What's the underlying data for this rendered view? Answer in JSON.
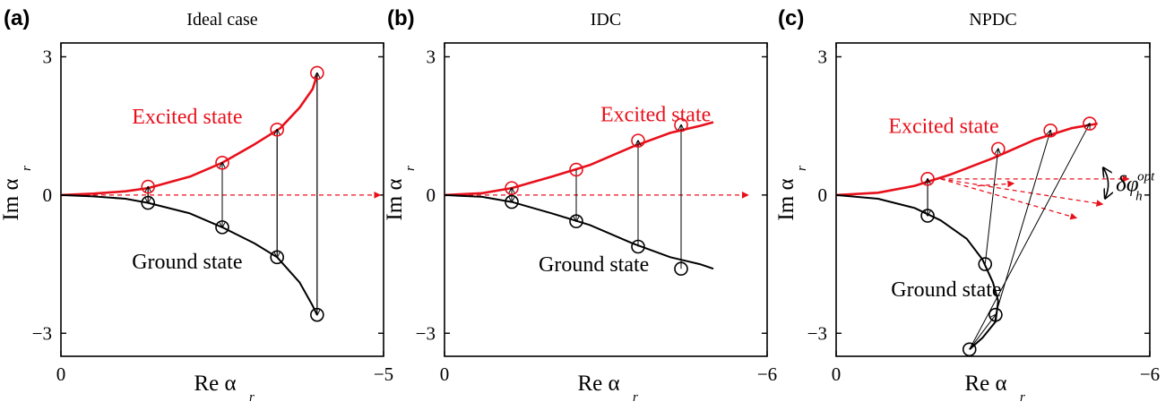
{
  "colors": {
    "excited": "#e8101b",
    "ground": "#000000"
  },
  "chart_data": [
    {
      "type": "line",
      "panel_label": "(a)",
      "title": "Ideal case",
      "xlabel_main": "Re α",
      "xlabel_sub": "r",
      "ylabel_main": "Im α",
      "ylabel_sub": "r",
      "xlim": [
        0,
        -5
      ],
      "ylim": [
        -3.5,
        3.3
      ],
      "x_ticks": [
        {
          "v": 0,
          "label": "0"
        },
        {
          "v": -5,
          "label": "−5"
        }
      ],
      "y_ticks": [
        {
          "v": 3,
          "label": "3"
        },
        {
          "v": 0,
          "label": "0"
        },
        {
          "v": -3,
          "label": "−3"
        }
      ],
      "series": [
        {
          "name": "Excited state",
          "curve": [
            [
              0,
              0
            ],
            [
              -0.5,
              0.03
            ],
            [
              -1,
              0.08
            ],
            [
              -1.35,
              0.15
            ],
            [
              -2,
              0.4
            ],
            [
              -2.5,
              0.7
            ],
            [
              -3,
              1.1
            ],
            [
              -3.4,
              1.45
            ],
            [
              -3.7,
              1.9
            ],
            [
              -3.9,
              2.3
            ],
            [
              -3.97,
              2.6
            ]
          ],
          "markers": [
            [
              -1.35,
              0.18
            ],
            [
              -2.5,
              0.7
            ],
            [
              -3.35,
              1.42
            ],
            [
              -3.97,
              2.65
            ]
          ]
        },
        {
          "name": "Ground state",
          "curve": [
            [
              0,
              0
            ],
            [
              -0.5,
              -0.03
            ],
            [
              -1,
              -0.08
            ],
            [
              -1.35,
              -0.17
            ],
            [
              -2,
              -0.4
            ],
            [
              -2.5,
              -0.7
            ],
            [
              -3,
              -1.05
            ],
            [
              -3.35,
              -1.35
            ],
            [
              -3.7,
              -1.9
            ],
            [
              -3.9,
              -2.4
            ],
            [
              -3.97,
              -2.6
            ]
          ],
          "markers": [
            [
              -1.35,
              -0.17
            ],
            [
              -2.5,
              -0.7
            ],
            [
              -3.35,
              -1.35
            ],
            [
              -3.97,
              -2.6
            ]
          ]
        }
      ],
      "arrows": [
        {
          "from": [
            -1.35,
            -0.17
          ],
          "to": [
            -1.35,
            0.18
          ],
          "style": "solid"
        },
        {
          "from": [
            -1.35,
            0.18
          ],
          "to": [
            -1.35,
            -0.17
          ],
          "style": "solid"
        },
        {
          "from": [
            -2.5,
            0.7
          ],
          "to": [
            -2.5,
            -0.7
          ],
          "style": "solid"
        },
        {
          "from": [
            -2.5,
            -0.7
          ],
          "to": [
            -2.5,
            0.7
          ],
          "style": "solid"
        },
        {
          "from": [
            -3.35,
            1.42
          ],
          "to": [
            -3.35,
            -1.35
          ],
          "style": "solid"
        },
        {
          "from": [
            -3.35,
            -1.35
          ],
          "to": [
            -3.35,
            1.42
          ],
          "style": "solid"
        },
        {
          "from": [
            -3.97,
            2.65
          ],
          "to": [
            -3.97,
            -2.6
          ],
          "style": "solid"
        },
        {
          "from": [
            -3.97,
            -2.6
          ],
          "to": [
            -3.97,
            2.65
          ],
          "style": "solid"
        },
        {
          "from": [
            0,
            0
          ],
          "to": [
            -4.95,
            0
          ],
          "style": "dashed"
        }
      ],
      "labels": [
        {
          "text": "Excited state",
          "at": [
            -1.1,
            1.55
          ],
          "color": "excited"
        },
        {
          "text": "Ground state",
          "at": [
            -1.1,
            -1.6
          ],
          "color": "ground"
        }
      ],
      "annotation": ""
    },
    {
      "type": "line",
      "panel_label": "(b)",
      "title": "IDC",
      "xlabel_main": "Re α",
      "xlabel_sub": "r",
      "ylabel_main": "Im α",
      "ylabel_sub": "r",
      "xlim": [
        0,
        -6
      ],
      "ylim": [
        -3.5,
        3.3
      ],
      "x_ticks": [
        {
          "v": 0,
          "label": "0"
        },
        {
          "v": -6,
          "label": "−6"
        }
      ],
      "y_ticks": [
        {
          "v": 3,
          "label": "3"
        },
        {
          "v": 0,
          "label": "0"
        },
        {
          "v": -3,
          "label": "−3"
        }
      ],
      "series": [
        {
          "name": "Excited state",
          "curve": [
            [
              0,
              0
            ],
            [
              -0.7,
              0.04
            ],
            [
              -1.25,
              0.15
            ],
            [
              -2,
              0.4
            ],
            [
              -2.7,
              0.65
            ],
            [
              -3.5,
              1.05
            ],
            [
              -4.2,
              1.35
            ],
            [
              -4.75,
              1.5
            ],
            [
              -5,
              1.58
            ]
          ],
          "markers": [
            [
              -1.25,
              0.15
            ],
            [
              -2.45,
              0.55
            ],
            [
              -3.6,
              1.18
            ],
            [
              -4.4,
              1.52
            ]
          ]
        },
        {
          "name": "Ground state",
          "curve": [
            [
              0,
              0
            ],
            [
              -0.7,
              -0.04
            ],
            [
              -1.25,
              -0.15
            ],
            [
              -2,
              -0.4
            ],
            [
              -2.7,
              -0.65
            ],
            [
              -3.5,
              -1.05
            ],
            [
              -4.2,
              -1.35
            ],
            [
              -4.75,
              -1.5
            ],
            [
              -5,
              -1.6
            ]
          ],
          "markers": [
            [
              -1.25,
              -0.15
            ],
            [
              -2.45,
              -0.57
            ],
            [
              -3.6,
              -1.12
            ],
            [
              -4.4,
              -1.6
            ]
          ]
        }
      ],
      "arrows": [
        {
          "from": [
            -1.25,
            -0.15
          ],
          "to": [
            -1.25,
            0.15
          ],
          "style": "solid"
        },
        {
          "from": [
            -1.25,
            0.15
          ],
          "to": [
            -1.25,
            -0.15
          ],
          "style": "solid"
        },
        {
          "from": [
            -2.45,
            0.55
          ],
          "to": [
            -2.45,
            -0.57
          ],
          "style": "solid"
        },
        {
          "from": [
            -3.6,
            -1.12
          ],
          "to": [
            -3.6,
            1.18
          ],
          "style": "solid"
        },
        {
          "from": [
            -4.4,
            -1.6
          ],
          "to": [
            -4.4,
            1.52
          ],
          "style": "solid"
        },
        {
          "from": [
            0,
            0
          ],
          "to": [
            -5.65,
            0
          ],
          "style": "dashed"
        }
      ],
      "labels": [
        {
          "text": "Excited state",
          "at": [
            -2.9,
            1.6
          ],
          "color": "excited"
        },
        {
          "text": "Ground state",
          "at": [
            -1.75,
            -1.65
          ],
          "color": "ground"
        }
      ],
      "annotation": ""
    },
    {
      "type": "line",
      "panel_label": "(c)",
      "title": "NPDC",
      "xlabel_main": "Re α",
      "xlabel_sub": "r",
      "ylabel_main": "Im α",
      "ylabel_sub": "r",
      "xlim": [
        0,
        -6
      ],
      "ylim": [
        -3.5,
        3.3
      ],
      "x_ticks": [
        {
          "v": 0,
          "label": "0"
        },
        {
          "v": -6,
          "label": "−6"
        }
      ],
      "y_ticks": [
        {
          "v": 3,
          "label": "3"
        },
        {
          "v": 0,
          "label": "0"
        },
        {
          "v": -3,
          "label": "−3"
        }
      ],
      "series": [
        {
          "name": "Excited state",
          "curve": [
            [
              0,
              0
            ],
            [
              -0.8,
              0.05
            ],
            [
              -1.5,
              0.2
            ],
            [
              -2.2,
              0.45
            ],
            [
              -3,
              0.8
            ],
            [
              -3.8,
              1.2
            ],
            [
              -4.5,
              1.45
            ],
            [
              -5,
              1.55
            ]
          ],
          "markers": [
            [
              -1.75,
              0.35
            ],
            [
              -3.1,
              1.0
            ],
            [
              -4.1,
              1.4
            ],
            [
              -4.85,
              1.55
            ]
          ]
        },
        {
          "name": "Ground state",
          "curve": [
            [
              0,
              0
            ],
            [
              -0.8,
              -0.08
            ],
            [
              -1.5,
              -0.28
            ],
            [
              -2,
              -0.55
            ],
            [
              -2.5,
              -0.95
            ],
            [
              -2.8,
              -1.4
            ],
            [
              -3.0,
              -1.9
            ],
            [
              -3.1,
              -2.3
            ],
            [
              -3.05,
              -2.75
            ],
            [
              -2.8,
              -3.1
            ],
            [
              -2.55,
              -3.35
            ]
          ],
          "markers": [
            [
              -1.75,
              -0.45
            ],
            [
              -2.85,
              -1.5
            ],
            [
              -3.05,
              -2.6
            ],
            [
              -2.55,
              -3.35
            ]
          ]
        }
      ],
      "arrows": [
        {
          "from": [
            -1.75,
            0.35
          ],
          "to": [
            -1.75,
            -0.45
          ],
          "style": "solid"
        },
        {
          "from": [
            -1.75,
            -0.45
          ],
          "to": [
            -1.75,
            0.35
          ],
          "style": "solid"
        },
        {
          "from": [
            -2.85,
            -1.5
          ],
          "to": [
            -3.1,
            1.0
          ],
          "style": "solid"
        },
        {
          "from": [
            -3.05,
            -2.6
          ],
          "to": [
            -4.1,
            1.4
          ],
          "style": "solid"
        },
        {
          "from": [
            -2.55,
            -3.35
          ],
          "to": [
            -4.85,
            1.55
          ],
          "style": "solid"
        },
        {
          "from": [
            -2.55,
            -3.35
          ],
          "to": [
            -3.05,
            -2.6
          ],
          "style": "solid"
        },
        {
          "from": [
            0,
            0
          ],
          "to": [
            0,
            0
          ],
          "style": "none"
        },
        {
          "from": [
            -2.0,
            0.35
          ],
          "to": [
            -5.6,
            0.35
          ],
          "style": "dashed"
        },
        {
          "from": [
            -2.0,
            0.35
          ],
          "to": [
            -5.1,
            -0.2
          ],
          "style": "dashed"
        },
        {
          "from": [
            -2.0,
            0.35
          ],
          "to": [
            -4.6,
            -0.5
          ],
          "style": "dashed"
        },
        {
          "from": [
            -2.7,
            0.2
          ],
          "to": [
            -3.4,
            0.25
          ],
          "style": "dashed"
        }
      ],
      "labels": [
        {
          "text": "Excited state",
          "at": [
            -1.0,
            1.35
          ],
          "color": "excited"
        },
        {
          "text": "Ground state",
          "at": [
            -1.05,
            -2.2
          ],
          "color": "ground"
        }
      ],
      "annotation": "δφ",
      "annotation_sub": "h",
      "annotation_sup": "opt"
    }
  ]
}
